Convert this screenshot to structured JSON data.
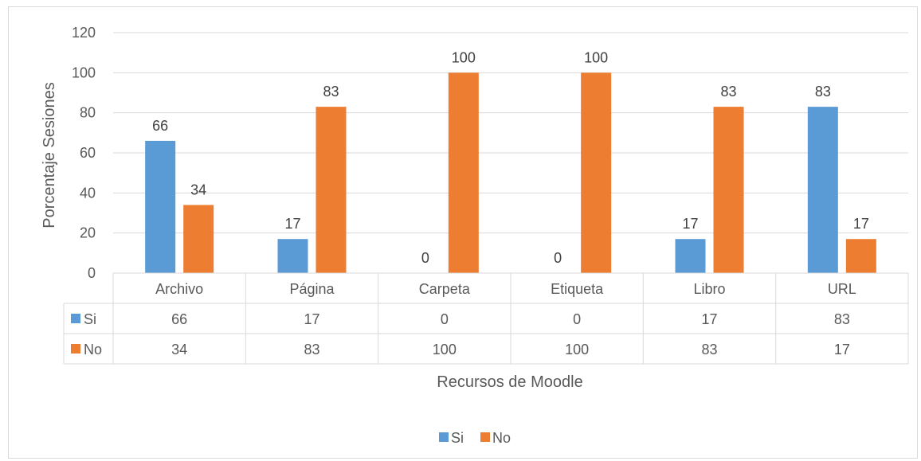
{
  "chart_data": {
    "type": "bar",
    "categories": [
      "Archivo",
      "Página",
      "Carpeta",
      "Etiqueta",
      "Libro",
      "URL"
    ],
    "series": [
      {
        "name": "Si",
        "values": [
          66,
          17,
          0,
          0,
          17,
          83
        ],
        "color": "#5b9bd5"
      },
      {
        "name": "No",
        "values": [
          34,
          83,
          100,
          100,
          83,
          17
        ],
        "color": "#ed7d31"
      }
    ],
    "ylabel": "Porcentaje Sesiones",
    "xlabel": "Recursos de Moodle",
    "ylim": [
      0,
      120
    ],
    "yticks": [
      0,
      20,
      40,
      60,
      80,
      100,
      120
    ],
    "grid": true,
    "data_table": true,
    "legend_position": "bottom"
  }
}
